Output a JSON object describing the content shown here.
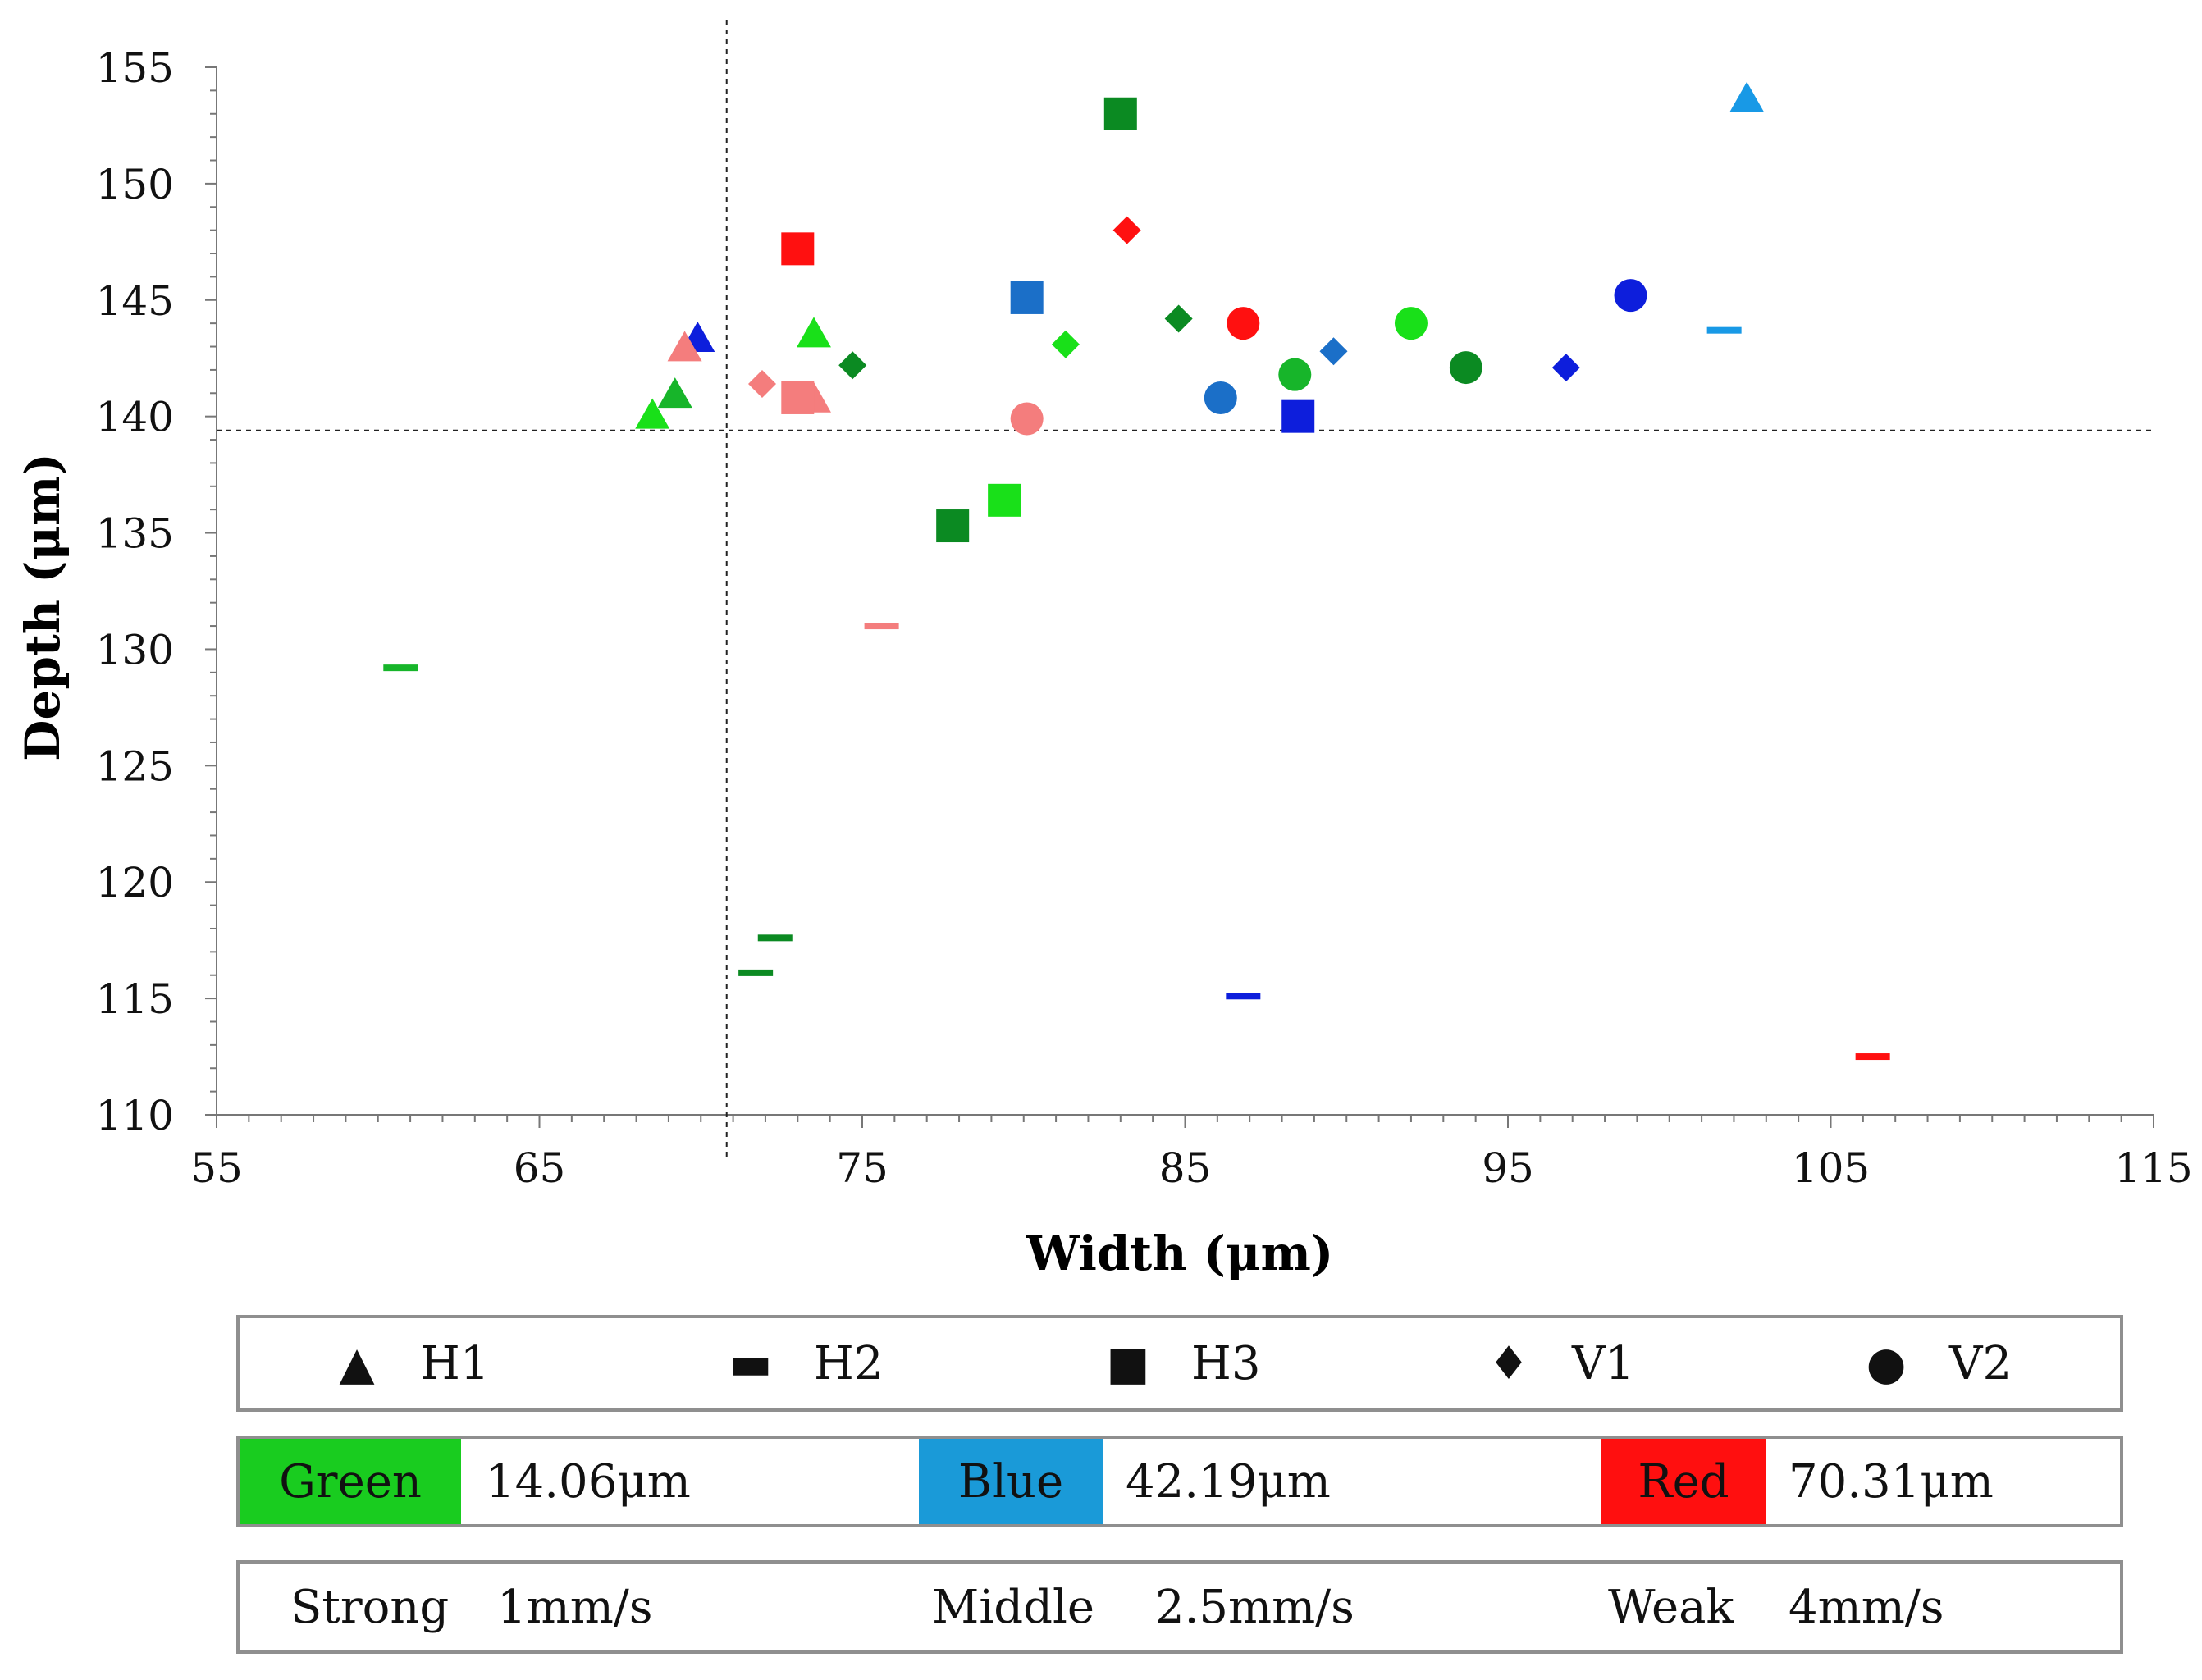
{
  "chart_data": {
    "type": "scatter",
    "xlabel": "Width (μm)",
    "ylabel": "Depth (μm)",
    "xlim": [
      55,
      115
    ],
    "ylim": [
      110,
      155
    ],
    "xticks": [
      "55",
      "65",
      "75",
      "85",
      "95",
      "105",
      "115"
    ],
    "yticks": [
      "110",
      "115",
      "120",
      "125",
      "130",
      "135",
      "140",
      "145",
      "150",
      "155"
    ],
    "reference_lines": {
      "vertical_x": 70.8,
      "horizontal_y": 139.4
    },
    "colors": {
      "green_strong": "#0b8a22",
      "green_middle": "#17b52a",
      "green_weak": "#19e019",
      "blue_strong": "#0d1edc",
      "blue_middle": "#1b6fc8",
      "blue_weak": "#1899e6",
      "red_strong": "#ff1010",
      "red_weak": "#f47d7d"
    },
    "points": [
      {
        "x": 68.5,
        "y": 140.0,
        "shape": "triangle",
        "color": "green_weak"
      },
      {
        "x": 69.2,
        "y": 140.9,
        "shape": "triangle",
        "color": "green_middle"
      },
      {
        "x": 69.9,
        "y": 143.3,
        "shape": "triangle",
        "color": "blue_strong"
      },
      {
        "x": 69.5,
        "y": 142.9,
        "shape": "triangle",
        "color": "red_weak"
      },
      {
        "x": 73.5,
        "y": 143.5,
        "shape": "triangle",
        "color": "green_weak"
      },
      {
        "x": 73.5,
        "y": 140.7,
        "shape": "triangle",
        "color": "red_weak"
      },
      {
        "x": 102.4,
        "y": 153.6,
        "shape": "triangle",
        "color": "blue_weak"
      },
      {
        "x": 60.7,
        "y": 129.2,
        "shape": "dash",
        "color": "green_middle"
      },
      {
        "x": 72.3,
        "y": 117.6,
        "shape": "dash",
        "color": "green_strong"
      },
      {
        "x": 71.7,
        "y": 116.1,
        "shape": "dash",
        "color": "green_strong"
      },
      {
        "x": 75.6,
        "y": 131.0,
        "shape": "dash",
        "color": "red_weak"
      },
      {
        "x": 86.8,
        "y": 115.1,
        "shape": "dash",
        "color": "blue_strong"
      },
      {
        "x": 101.7,
        "y": 143.7,
        "shape": "dash",
        "color": "blue_weak"
      },
      {
        "x": 106.3,
        "y": 112.5,
        "shape": "dash",
        "color": "red_strong"
      },
      {
        "x": 73.0,
        "y": 147.2,
        "shape": "square",
        "color": "red_strong"
      },
      {
        "x": 73.0,
        "y": 140.8,
        "shape": "square",
        "color": "red_weak"
      },
      {
        "x": 77.8,
        "y": 135.3,
        "shape": "square",
        "color": "green_strong"
      },
      {
        "x": 79.4,
        "y": 136.4,
        "shape": "square",
        "color": "green_weak"
      },
      {
        "x": 80.1,
        "y": 145.1,
        "shape": "square",
        "color": "blue_middle"
      },
      {
        "x": 83.0,
        "y": 153.0,
        "shape": "square",
        "color": "green_strong"
      },
      {
        "x": 88.5,
        "y": 140.0,
        "shape": "square",
        "color": "blue_strong"
      },
      {
        "x": 71.9,
        "y": 141.4,
        "shape": "diamond",
        "color": "red_weak"
      },
      {
        "x": 74.7,
        "y": 142.2,
        "shape": "diamond",
        "color": "green_strong"
      },
      {
        "x": 81.3,
        "y": 143.1,
        "shape": "diamond",
        "color": "green_weak"
      },
      {
        "x": 83.2,
        "y": 148.0,
        "shape": "diamond",
        "color": "red_strong"
      },
      {
        "x": 84.8,
        "y": 144.2,
        "shape": "diamond",
        "color": "green_strong"
      },
      {
        "x": 89.6,
        "y": 142.8,
        "shape": "diamond",
        "color": "blue_middle"
      },
      {
        "x": 96.8,
        "y": 142.1,
        "shape": "diamond",
        "color": "blue_strong"
      },
      {
        "x": 80.1,
        "y": 139.9,
        "shape": "circle",
        "color": "red_weak"
      },
      {
        "x": 86.1,
        "y": 140.8,
        "shape": "circle",
        "color": "blue_middle"
      },
      {
        "x": 86.8,
        "y": 144.0,
        "shape": "circle",
        "color": "red_strong"
      },
      {
        "x": 88.4,
        "y": 141.8,
        "shape": "circle",
        "color": "green_middle"
      },
      {
        "x": 92.0,
        "y": 144.0,
        "shape": "circle",
        "color": "green_weak"
      },
      {
        "x": 93.7,
        "y": 142.1,
        "shape": "circle",
        "color": "green_strong"
      },
      {
        "x": 98.8,
        "y": 145.2,
        "shape": "circle",
        "color": "blue_strong"
      }
    ]
  },
  "legend": {
    "shapes": [
      {
        "symbol": "▲",
        "label": "H1"
      },
      {
        "symbol": "▬",
        "label": "H2"
      },
      {
        "symbol": "■",
        "label": "H3"
      },
      {
        "symbol": "♦",
        "label": "V1"
      },
      {
        "symbol": "●",
        "label": "V2"
      }
    ],
    "colors": [
      {
        "name": "Green",
        "value": "14.06μm",
        "swatch": "#19cc1f"
      },
      {
        "name": "Blue",
        "value": "42.19μm",
        "swatch": "#1a9ad8"
      },
      {
        "name": "Red",
        "value": "70.31μm",
        "swatch": "#ff0f0f"
      }
    ],
    "speeds": [
      {
        "name": "Strong",
        "value": "1mm/s"
      },
      {
        "name": "Middle",
        "value": "2.5mm/s"
      },
      {
        "name": "Weak",
        "value": "4mm/s"
      }
    ]
  }
}
